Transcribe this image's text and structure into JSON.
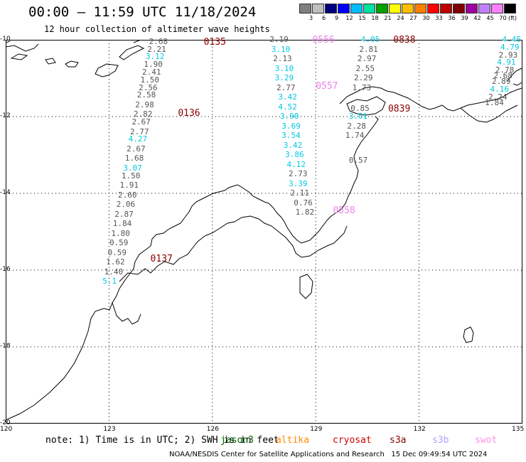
{
  "title": "00:00 – 11:59 UTC 11/18/2024",
  "subtitle": "12 hour collection of altimeter wave heights",
  "legend": {
    "unit": "(ft)",
    "bins": [
      {
        "label": "3",
        "color": "#7f7f7f"
      },
      {
        "label": "6",
        "color": "#bfbfbf"
      },
      {
        "label": "9",
        "color": "#00007f"
      },
      {
        "label": "12",
        "color": "#0000ff"
      },
      {
        "label": "15",
        "color": "#00bfff"
      },
      {
        "label": "18",
        "color": "#00e0a0"
      },
      {
        "label": "21",
        "color": "#00a000"
      },
      {
        "label": "24",
        "color": "#ffff00"
      },
      {
        "label": "27",
        "color": "#ffbf00"
      },
      {
        "label": "30",
        "color": "#ff7f00"
      },
      {
        "label": "33",
        "color": "#ff0000"
      },
      {
        "label": "36",
        "color": "#bf0000"
      },
      {
        "label": "39",
        "color": "#7f0000"
      },
      {
        "label": "42",
        "color": "#a000a0"
      },
      {
        "label": "45",
        "color": "#c080ff"
      },
      {
        "label": "70",
        "color": "#ff80ff"
      },
      {
        "label": "",
        "color": "#000000"
      }
    ]
  },
  "axes": {
    "x_ticks": [
      {
        "label": "120",
        "lon": 120
      },
      {
        "label": "123",
        "lon": 123
      },
      {
        "label": "126",
        "lon": 126
      },
      {
        "label": "129",
        "lon": 129
      },
      {
        "label": "132",
        "lon": 132
      },
      {
        "label": "135",
        "lon": 135
      }
    ],
    "y_ticks": [
      {
        "label": "-10",
        "lat": -10
      },
      {
        "label": "-12",
        "lat": -12
      },
      {
        "label": "-14",
        "lat": -14
      },
      {
        "label": "-16",
        "lat": -16
      },
      {
        "label": "-18",
        "lat": -18
      },
      {
        "label": "-20",
        "lat": -20
      }
    ],
    "lon_range": [
      120,
      135
    ],
    "lat_range": [
      -20,
      -10
    ]
  },
  "colors": {
    "gray": "#555555",
    "cyan": "#00c8e0",
    "darkred": "#8b0000",
    "pink": "#ee82ee",
    "red": "#cc0000"
  },
  "tracks": [
    {
      "time_labels": [
        {
          "text": "0135",
          "lon": 125.75,
          "lat": -10.05,
          "color": "darkred"
        },
        {
          "text": "0136",
          "lon": 125.0,
          "lat": -11.9,
          "color": "darkred"
        },
        {
          "text": "0137",
          "lon": 124.2,
          "lat": -15.7,
          "color": "darkred"
        }
      ],
      "obs": [
        {
          "v": "2.68",
          "lon": 124.45,
          "lat": -10.05,
          "c": "gray"
        },
        {
          "v": "2.21",
          "lon": 124.4,
          "lat": -10.25,
          "c": "gray"
        },
        {
          "v": "3.12",
          "lon": 124.35,
          "lat": -10.45,
          "c": "cyan"
        },
        {
          "v": "1.90",
          "lon": 124.3,
          "lat": -10.65,
          "c": "gray"
        },
        {
          "v": "2.41",
          "lon": 124.25,
          "lat": -10.85,
          "c": "gray"
        },
        {
          "v": "1.50",
          "lon": 124.2,
          "lat": -11.05,
          "c": "gray"
        },
        {
          "v": "2.56",
          "lon": 124.15,
          "lat": -11.25,
          "c": "gray"
        },
        {
          "v": "2.58",
          "lon": 124.1,
          "lat": -11.45,
          "c": "gray"
        },
        {
          "v": "2.98",
          "lon": 124.05,
          "lat": -11.7,
          "c": "gray"
        },
        {
          "v": "2.82",
          "lon": 124.0,
          "lat": -11.95,
          "c": "gray"
        },
        {
          "v": "2.67",
          "lon": 123.95,
          "lat": -12.15,
          "c": "gray"
        },
        {
          "v": "2.77",
          "lon": 123.9,
          "lat": -12.4,
          "c": "gray"
        },
        {
          "v": "4.27",
          "lon": 123.85,
          "lat": -12.6,
          "c": "cyan"
        },
        {
          "v": "2.67",
          "lon": 123.8,
          "lat": -12.85,
          "c": "gray"
        },
        {
          "v": "1.68",
          "lon": 123.75,
          "lat": -13.1,
          "c": "gray"
        },
        {
          "v": "3.07",
          "lon": 123.7,
          "lat": -13.35,
          "c": "cyan"
        },
        {
          "v": "1.50",
          "lon": 123.65,
          "lat": -13.55,
          "c": "gray"
        },
        {
          "v": "1.91",
          "lon": 123.6,
          "lat": -13.8,
          "c": "gray"
        },
        {
          "v": "2.60",
          "lon": 123.55,
          "lat": -14.05,
          "c": "gray"
        },
        {
          "v": "2.06",
          "lon": 123.5,
          "lat": -14.3,
          "c": "gray"
        },
        {
          "v": "2.87",
          "lon": 123.45,
          "lat": -14.55,
          "c": "gray"
        },
        {
          "v": "1.84",
          "lon": 123.4,
          "lat": -14.8,
          "c": "gray"
        },
        {
          "v": "1.80",
          "lon": 123.35,
          "lat": -15.05,
          "c": "gray"
        },
        {
          "v": "0.59",
          "lon": 123.3,
          "lat": -15.3,
          "c": "gray"
        },
        {
          "v": "0.59",
          "lon": 123.25,
          "lat": -15.55,
          "c": "gray"
        },
        {
          "v": "1.62",
          "lon": 123.2,
          "lat": -15.8,
          "c": "gray"
        },
        {
          "v": "1.40",
          "lon": 123.15,
          "lat": -16.05,
          "c": "gray"
        },
        {
          "v": "5.1",
          "lon": 123.1,
          "lat": -16.3,
          "c": "cyan"
        }
      ]
    },
    {
      "time_labels": [
        {
          "text": "0556",
          "lon": 128.9,
          "lat": -10.0,
          "color": "pink"
        },
        {
          "text": "0557",
          "lon": 129.0,
          "lat": -11.2,
          "color": "pink"
        },
        {
          "text": "0558",
          "lon": 129.5,
          "lat": -14.45,
          "color": "pink"
        }
      ],
      "obs": [
        {
          "v": "2.19",
          "lon": 127.95,
          "lat": -10.0,
          "c": "gray"
        },
        {
          "v": "3.10",
          "lon": 128.0,
          "lat": -10.25,
          "c": "cyan"
        },
        {
          "v": "2.13",
          "lon": 128.05,
          "lat": -10.5,
          "c": "gray"
        },
        {
          "v": "3.10",
          "lon": 128.1,
          "lat": -10.75,
          "c": "cyan"
        },
        {
          "v": "3.29",
          "lon": 128.1,
          "lat": -11.0,
          "c": "cyan"
        },
        {
          "v": "2.77",
          "lon": 128.15,
          "lat": -11.25,
          "c": "gray"
        },
        {
          "v": "3.42",
          "lon": 128.2,
          "lat": -11.5,
          "c": "cyan"
        },
        {
          "v": "4.52",
          "lon": 128.2,
          "lat": -11.75,
          "c": "cyan"
        },
        {
          "v": "3.90",
          "lon": 128.25,
          "lat": -12.0,
          "c": "cyan"
        },
        {
          "v": "3.69",
          "lon": 128.3,
          "lat": -12.25,
          "c": "cyan"
        },
        {
          "v": "3.54",
          "lon": 128.3,
          "lat": -12.5,
          "c": "cyan"
        },
        {
          "v": "3.42",
          "lon": 128.35,
          "lat": -12.75,
          "c": "cyan"
        },
        {
          "v": "3.86",
          "lon": 128.4,
          "lat": -13.0,
          "c": "cyan"
        },
        {
          "v": "4.12",
          "lon": 128.45,
          "lat": -13.25,
          "c": "cyan"
        },
        {
          "v": "2.73",
          "lon": 128.5,
          "lat": -13.5,
          "c": "gray"
        },
        {
          "v": "3.39",
          "lon": 128.5,
          "lat": -13.75,
          "c": "cyan"
        },
        {
          "v": "2.11",
          "lon": 128.55,
          "lat": -14.0,
          "c": "gray"
        },
        {
          "v": "0.76",
          "lon": 128.65,
          "lat": -14.25,
          "c": "gray"
        },
        {
          "v": "1.82",
          "lon": 128.7,
          "lat": -14.5,
          "c": "gray"
        }
      ]
    },
    {
      "time_labels": [
        {
          "text": "0838",
          "lon": 131.25,
          "lat": -10.0,
          "color": "darkred"
        },
        {
          "text": "0839",
          "lon": 131.1,
          "lat": -11.8,
          "color": "darkred"
        }
      ],
      "obs": [
        {
          "v": "4.05",
          "lon": 130.6,
          "lat": -10.0,
          "c": "cyan"
        },
        {
          "v": "2.81",
          "lon": 130.55,
          "lat": -10.25,
          "c": "gray"
        },
        {
          "v": "2.97",
          "lon": 130.5,
          "lat": -10.5,
          "c": "gray"
        },
        {
          "v": "2.55",
          "lon": 130.45,
          "lat": -10.75,
          "c": "gray"
        },
        {
          "v": "2.29",
          "lon": 130.4,
          "lat": -11.0,
          "c": "gray"
        },
        {
          "v": "1.73",
          "lon": 130.35,
          "lat": -11.25,
          "c": "gray"
        },
        {
          "v": "0.85",
          "lon": 130.3,
          "lat": -11.8,
          "c": "gray"
        },
        {
          "v": "3.01",
          "lon": 130.25,
          "lat": -12.0,
          "c": "cyan"
        },
        {
          "v": "2.28",
          "lon": 130.2,
          "lat": -12.25,
          "c": "gray"
        },
        {
          "v": "1.74",
          "lon": 130.15,
          "lat": -12.5,
          "c": "gray"
        },
        {
          "v": "0.57",
          "lon": 130.25,
          "lat": -13.15,
          "c": "gray"
        }
      ]
    },
    {
      "time_labels": [],
      "obs": [
        {
          "v": "4.45",
          "lon": 134.7,
          "lat": -10.0,
          "c": "cyan"
        },
        {
          "v": "4.79",
          "lon": 134.65,
          "lat": -10.2,
          "c": "cyan"
        },
        {
          "v": "2.93",
          "lon": 134.6,
          "lat": -10.4,
          "c": "gray"
        },
        {
          "v": "4.91",
          "lon": 134.55,
          "lat": -10.6,
          "c": "cyan"
        },
        {
          "v": "2.78",
          "lon": 134.5,
          "lat": -10.8,
          "c": "gray"
        },
        {
          "v": "2.68",
          "lon": 134.45,
          "lat": -10.95,
          "c": "gray"
        },
        {
          "v": "2.89",
          "lon": 134.4,
          "lat": -11.1,
          "c": "gray"
        },
        {
          "v": "4.16",
          "lon": 134.35,
          "lat": -11.3,
          "c": "cyan"
        },
        {
          "v": "2.24",
          "lon": 134.3,
          "lat": -11.5,
          "c": "gray"
        },
        {
          "v": "1.84",
          "lon": 134.2,
          "lat": -11.65,
          "c": "gray"
        }
      ]
    }
  ],
  "note": "note: 1) Time is in UTC; 2) SWH is in feet",
  "satellites": [
    {
      "label": "jason3",
      "color": "#006400"
    },
    {
      "label": "altika",
      "color": "#ff8c00"
    },
    {
      "label": "cryosat",
      "color": "#cc0000"
    },
    {
      "label": "s3a",
      "color": "#8b0000"
    },
    {
      "label": "s3b",
      "color": "#b0a0ff"
    },
    {
      "label": "swot",
      "color": "#ff90e8"
    }
  ],
  "credit": "NOAA/NESDIS Center for Satellite Applications and Research   15 Dec 09:49:54 UTC 2024"
}
